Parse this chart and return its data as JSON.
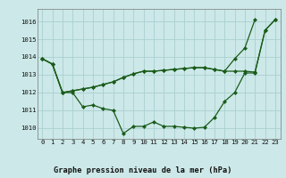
{
  "title": "Graphe pression niveau de la mer (hPa)",
  "background_color": "#cce8e8",
  "grid_color": "#aad0d0",
  "line_color": "#1a5c1a",
  "xlim": [
    -0.5,
    23.5
  ],
  "ylim": [
    1009.4,
    1016.7
  ],
  "yticks": [
    1010,
    1011,
    1012,
    1013,
    1014,
    1015,
    1016
  ],
  "xticks": [
    0,
    1,
    2,
    3,
    4,
    5,
    6,
    7,
    8,
    9,
    10,
    11,
    12,
    13,
    14,
    15,
    16,
    17,
    18,
    19,
    20,
    21,
    22,
    23
  ],
  "s1": [
    1013.9,
    1013.6,
    1012.0,
    1012.0,
    1011.2,
    1011.3,
    1011.1,
    1011.0,
    1009.7,
    1010.1,
    1010.1,
    1010.35,
    1010.1,
    1010.1,
    1010.05,
    1010.0,
    1010.05,
    1010.6,
    1011.5,
    1012.0,
    1013.1,
    1013.1,
    1015.5,
    1016.1
  ],
  "s2": [
    1013.9,
    1013.6,
    1012.0,
    1012.1,
    1012.2,
    1012.3,
    1012.45,
    1012.6,
    1012.85,
    1013.05,
    1013.2,
    1013.2,
    1013.25,
    1013.3,
    1013.35,
    1013.4,
    1013.4,
    1013.3,
    1013.2,
    1013.2,
    1013.2,
    1013.15,
    1015.5,
    1016.1
  ],
  "s2_x": [
    0,
    1,
    2,
    3,
    4,
    5,
    6,
    7,
    8,
    9,
    10,
    11,
    12,
    13,
    14,
    15,
    16,
    17,
    18,
    19,
    20,
    21,
    22,
    23
  ],
  "s3": [
    1013.9,
    1013.6,
    1012.0,
    1012.1,
    1012.2,
    1012.3,
    1012.45,
    1012.6,
    1012.85,
    1013.05,
    1013.2,
    1013.2,
    1013.25,
    1013.3,
    1013.35,
    1013.4,
    1013.4,
    1013.3,
    1013.2,
    1013.9,
    1014.5,
    1016.1
  ],
  "s3_x": [
    0,
    1,
    2,
    3,
    4,
    5,
    6,
    7,
    8,
    9,
    10,
    11,
    12,
    13,
    14,
    15,
    16,
    17,
    18,
    19,
    20,
    21
  ],
  "marker": "D",
  "markersize": 2.0,
  "linewidth": 0.9,
  "title_fontsize": 6.2,
  "tick_fontsize": 5.2
}
